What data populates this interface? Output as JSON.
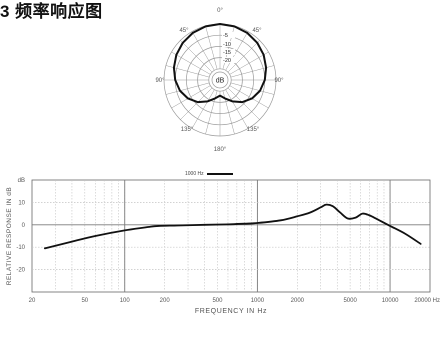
{
  "title": "3 频率响应图",
  "colors": {
    "curve": "#111111",
    "grid": "#9a9a9a",
    "gridFine": "#c4c4c4",
    "text": "#555555",
    "background": "#ffffff"
  },
  "chart_data": [
    {
      "type": "polar",
      "title": "",
      "angle_labels": [
        "0°",
        "45°",
        "45°",
        "90°",
        "90°",
        "135°",
        "135°",
        "180°"
      ],
      "ring_labels": [
        "-5",
        "-10",
        "-15",
        "-20",
        "dB"
      ],
      "r_max_db": 25,
      "grid": true,
      "series": [
        {
          "name": "1000 Hz",
          "angles_deg": [
            0,
            15,
            30,
            45,
            60,
            75,
            90,
            105,
            120,
            135,
            150,
            165,
            180,
            195,
            210,
            225,
            240,
            255,
            270,
            285,
            300,
            315,
            330,
            345
          ],
          "values_db": [
            0,
            -0.2,
            -0.7,
            -1.5,
            -2.5,
            -3.7,
            -5,
            -6.5,
            -8.5,
            -11,
            -14,
            -16.5,
            -18,
            -16.5,
            -14,
            -11,
            -8.5,
            -6.5,
            -5,
            -3.7,
            -2.5,
            -1.5,
            -0.7,
            -0.2
          ]
        }
      ]
    },
    {
      "type": "line",
      "title": "",
      "xlabel": "FREQUENCY IN Hz",
      "ylabel": "RELATIVE RESPONSE IN dB",
      "y_unit": "dB",
      "x_scale": "log",
      "xlim": [
        20,
        20000
      ],
      "ylim": [
        -30,
        20
      ],
      "x_ticks": [
        20,
        50,
        100,
        200,
        500,
        1000,
        2000,
        5000,
        10000,
        20000
      ],
      "x_tick_labels": [
        "20",
        "50",
        "100",
        "200",
        "500",
        "1000",
        "2000",
        "5000",
        "10000",
        "20000 Hz"
      ],
      "y_ticks": [
        10,
        0,
        -10,
        -20
      ],
      "y_tick_labels": [
        "10",
        "0",
        "-10",
        "-20"
      ],
      "grid": true,
      "series": [
        {
          "name": "",
          "x": [
            25,
            40,
            60,
            100,
            150,
            180,
            250,
            400,
            600,
            800,
            1000,
            1500,
            2000,
            2500,
            3000,
            3300,
            3700,
            4200,
            4800,
            5500,
            6200,
            7000,
            8000,
            10000,
            13000,
            17000
          ],
          "y": [
            -10.5,
            -7.5,
            -5,
            -2.5,
            -1,
            -0.5,
            -0.3,
            0,
            0.2,
            0.5,
            0.8,
            2,
            3.8,
            5.5,
            7.8,
            9,
            8.3,
            5.5,
            2.8,
            3.2,
            5,
            4.2,
            2.5,
            -0.5,
            -4,
            -8.5
          ]
        }
      ]
    }
  ]
}
